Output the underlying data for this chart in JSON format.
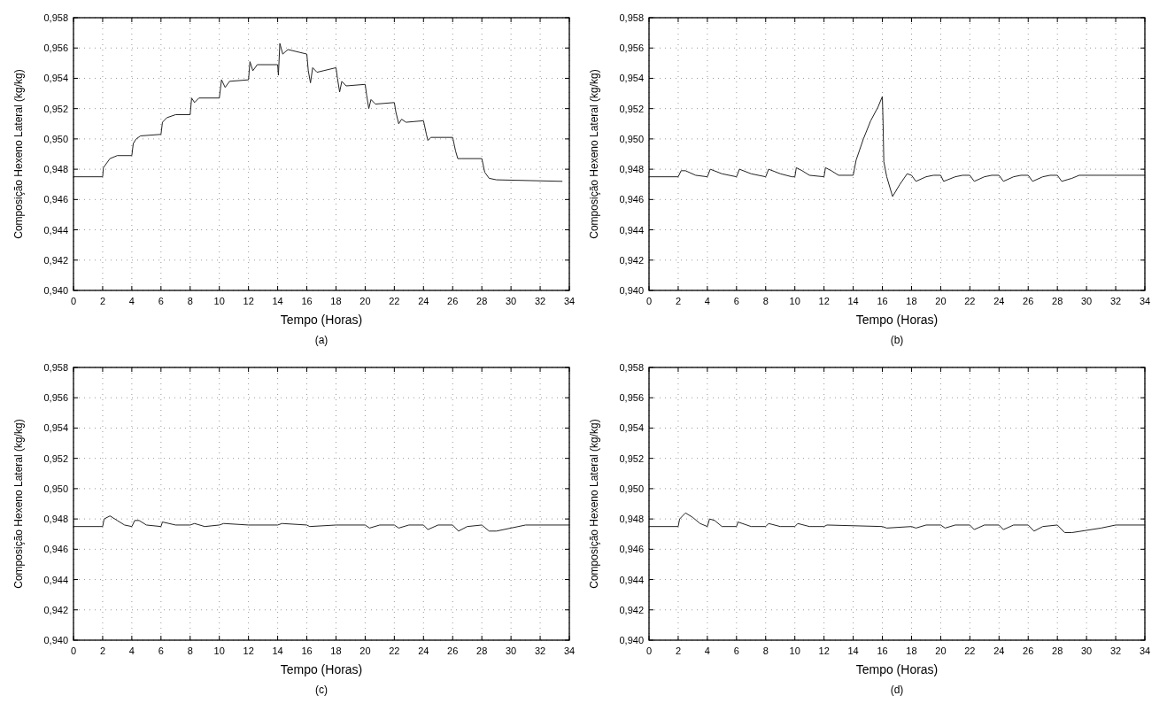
{
  "chart_data": [
    {
      "type": "line",
      "xlabel": "Tempo (Horas)",
      "ylabel": "Composição Hexeno Lateral (kg/kg)",
      "annotations": [
        "(a)"
      ],
      "grid": true,
      "xlim": [
        0,
        34
      ],
      "xticks": [
        0,
        2,
        4,
        6,
        8,
        10,
        12,
        14,
        16,
        18,
        20,
        22,
        24,
        26,
        28,
        30,
        32,
        34
      ],
      "ylim": [
        0.94,
        0.958
      ],
      "yticks": [
        {
          "value": 0.94,
          "label": "0,940"
        },
        {
          "value": 0.942,
          "label": "0,942"
        },
        {
          "value": 0.944,
          "label": "0,944"
        },
        {
          "value": 0.946,
          "label": "0,946"
        },
        {
          "value": 0.948,
          "label": "0,948"
        },
        {
          "value": 0.95,
          "label": "0,950"
        },
        {
          "value": 0.952,
          "label": "0,952"
        },
        {
          "value": 0.954,
          "label": "0,954"
        },
        {
          "value": 0.956,
          "label": "0,956"
        },
        {
          "value": 0.958,
          "label": "0,958"
        }
      ],
      "series": [
        {
          "color": "#222222",
          "x": [
            0,
            2,
            2.05,
            2.5,
            3,
            4,
            4.1,
            4.3,
            4.6,
            6,
            6.1,
            6.4,
            7,
            8,
            8.1,
            8.3,
            8.6,
            10,
            10.15,
            10.4,
            10.7,
            12,
            12.1,
            12.3,
            12.6,
            14,
            14.05,
            14.15,
            14.35,
            14.7,
            16,
            16.1,
            16.25,
            16.4,
            16.7,
            18,
            18.1,
            18.25,
            18.4,
            18.7,
            20,
            20.1,
            20.25,
            20.4,
            20.7,
            22,
            22.1,
            22.3,
            22.5,
            22.8,
            24,
            24.2,
            24.3,
            24.5,
            26,
            26.2,
            26.35,
            26.6,
            28,
            28.2,
            28.5,
            29,
            33.5
          ],
          "values": [
            0.9475,
            0.9475,
            0.9481,
            0.9487,
            0.9489,
            0.9489,
            0.9497,
            0.95,
            0.9502,
            0.9503,
            0.9511,
            0.9514,
            0.9516,
            0.9516,
            0.9527,
            0.9524,
            0.9527,
            0.9527,
            0.9539,
            0.9534,
            0.9538,
            0.9539,
            0.9551,
            0.9545,
            0.9549,
            0.9549,
            0.9542,
            0.9563,
            0.9556,
            0.9559,
            0.9556,
            0.9545,
            0.9537,
            0.9547,
            0.9544,
            0.9547,
            0.954,
            0.9531,
            0.9538,
            0.9535,
            0.9536,
            0.9529,
            0.952,
            0.9526,
            0.9523,
            0.9524,
            0.9518,
            0.951,
            0.9513,
            0.9511,
            0.9512,
            0.9503,
            0.9499,
            0.9501,
            0.9501,
            0.9492,
            0.9487,
            0.9487,
            0.9487,
            0.9478,
            0.9474,
            0.9473,
            0.9472
          ]
        }
      ]
    },
    {
      "type": "line",
      "xlabel": "Tempo (Horas)",
      "ylabel": "Composição Hexeno Lateral (kg/kg)",
      "annotations": [
        "(b)"
      ],
      "grid": true,
      "xlim": [
        0,
        34
      ],
      "xticks": [
        0,
        2,
        4,
        6,
        8,
        10,
        12,
        14,
        16,
        18,
        20,
        22,
        24,
        26,
        28,
        30,
        32,
        34
      ],
      "ylim": [
        0.94,
        0.958
      ],
      "yticks": [
        {
          "value": 0.94,
          "label": "0,940"
        },
        {
          "value": 0.942,
          "label": "0,942"
        },
        {
          "value": 0.944,
          "label": "0,944"
        },
        {
          "value": 0.946,
          "label": "0,946"
        },
        {
          "value": 0.948,
          "label": "0,948"
        },
        {
          "value": 0.95,
          "label": "0,950"
        },
        {
          "value": 0.952,
          "label": "0,952"
        },
        {
          "value": 0.954,
          "label": "0,954"
        },
        {
          "value": 0.956,
          "label": "0,956"
        },
        {
          "value": 0.958,
          "label": "0,958"
        }
      ],
      "series": [
        {
          "color": "#222222",
          "x": [
            0,
            2,
            2.2,
            2.5,
            3.2,
            4,
            4.2,
            5,
            6,
            6.2,
            7,
            8,
            8.2,
            9,
            9.8,
            10,
            10.1,
            10.5,
            11,
            12,
            12.1,
            12.5,
            13,
            14,
            14.2,
            14.7,
            15.2,
            15.7,
            16,
            16.05,
            16.1,
            16.3,
            16.7,
            17.2,
            17.7,
            18,
            18.3,
            19,
            19.5,
            20,
            20.2,
            21,
            21.5,
            22,
            22.3,
            23,
            23.5,
            24,
            24.3,
            25,
            25.5,
            26,
            26.3,
            27,
            27.5,
            28,
            28.3,
            29,
            29.5,
            34
          ],
          "values": [
            0.9475,
            0.9475,
            0.9479,
            0.9479,
            0.9476,
            0.9475,
            0.948,
            0.9477,
            0.9475,
            0.948,
            0.9477,
            0.9475,
            0.948,
            0.9477,
            0.9475,
            0.9475,
            0.9481,
            0.9479,
            0.9476,
            0.9475,
            0.9481,
            0.9479,
            0.9476,
            0.9476,
            0.9486,
            0.95,
            0.9512,
            0.9521,
            0.9528,
            0.951,
            0.9485,
            0.9475,
            0.9462,
            0.947,
            0.9477,
            0.9476,
            0.9472,
            0.9475,
            0.9476,
            0.9476,
            0.9472,
            0.9475,
            0.9476,
            0.9476,
            0.9472,
            0.9475,
            0.9476,
            0.9476,
            0.9472,
            0.9475,
            0.9476,
            0.9476,
            0.9472,
            0.9475,
            0.9476,
            0.9476,
            0.9472,
            0.9474,
            0.9476,
            0.9476
          ]
        }
      ]
    },
    {
      "type": "line",
      "xlabel": "Tempo (Horas)",
      "ylabel": "Composição Hexeno Lateral (kg/kg)",
      "annotations": [
        "(c)"
      ],
      "grid": true,
      "xlim": [
        0,
        34
      ],
      "xticks": [
        0,
        2,
        4,
        6,
        8,
        10,
        12,
        14,
        16,
        18,
        20,
        22,
        24,
        26,
        28,
        30,
        32,
        34
      ],
      "ylim": [
        0.94,
        0.958
      ],
      "yticks": [
        {
          "value": 0.94,
          "label": "0,940"
        },
        {
          "value": 0.942,
          "label": "0,942"
        },
        {
          "value": 0.944,
          "label": "0,944"
        },
        {
          "value": 0.946,
          "label": "0,946"
        },
        {
          "value": 0.948,
          "label": "0,948"
        },
        {
          "value": 0.95,
          "label": "0,950"
        },
        {
          "value": 0.952,
          "label": "0,952"
        },
        {
          "value": 0.954,
          "label": "0,954"
        },
        {
          "value": 0.956,
          "label": "0,956"
        },
        {
          "value": 0.958,
          "label": "0,958"
        }
      ],
      "series": [
        {
          "color": "#222222",
          "x": [
            0,
            2,
            2.1,
            2.5,
            3,
            3.5,
            4,
            4.2,
            4.5,
            5,
            6,
            6.1,
            7,
            8,
            8.3,
            9,
            10,
            10.3,
            12,
            14,
            14.3,
            16,
            16.2,
            18,
            20,
            20.3,
            21,
            22,
            22.3,
            23,
            24,
            24.3,
            25,
            26,
            26.4,
            27,
            28,
            28.5,
            29,
            30,
            31,
            34
          ],
          "values": [
            0.9475,
            0.9475,
            0.948,
            0.9482,
            0.9479,
            0.9476,
            0.9475,
            0.9479,
            0.9479,
            0.9476,
            0.9475,
            0.9478,
            0.9476,
            0.9476,
            0.9477,
            0.9475,
            0.9476,
            0.9477,
            0.9476,
            0.9476,
            0.9477,
            0.9476,
            0.9475,
            0.9476,
            0.9476,
            0.9474,
            0.9476,
            0.9476,
            0.9474,
            0.9476,
            0.9476,
            0.9473,
            0.9476,
            0.9476,
            0.9472,
            0.9475,
            0.9476,
            0.9472,
            0.9472,
            0.9474,
            0.9476,
            0.9476
          ]
        }
      ]
    },
    {
      "type": "line",
      "xlabel": "Tempo (Horas)",
      "ylabel": "Composição Hexeno Lateral (kg/kg)",
      "annotations": [
        "(d)"
      ],
      "grid": true,
      "xlim": [
        0,
        34
      ],
      "xticks": [
        0,
        2,
        4,
        6,
        8,
        10,
        12,
        14,
        16,
        18,
        20,
        22,
        24,
        26,
        28,
        30,
        32,
        34
      ],
      "ylim": [
        0.94,
        0.958
      ],
      "yticks": [
        {
          "value": 0.94,
          "label": "0,940"
        },
        {
          "value": 0.942,
          "label": "0,942"
        },
        {
          "value": 0.944,
          "label": "0,944"
        },
        {
          "value": 0.946,
          "label": "0,946"
        },
        {
          "value": 0.948,
          "label": "0,948"
        },
        {
          "value": 0.95,
          "label": "0,950"
        },
        {
          "value": 0.952,
          "label": "0,952"
        },
        {
          "value": 0.954,
          "label": "0,954"
        },
        {
          "value": 0.956,
          "label": "0,956"
        },
        {
          "value": 0.958,
          "label": "0,958"
        }
      ],
      "series": [
        {
          "color": "#222222",
          "x": [
            0,
            2,
            2.1,
            2.5,
            3,
            3.5,
            4,
            4.15,
            4.5,
            5,
            6,
            6.1,
            7,
            8,
            8.2,
            9,
            10,
            10.2,
            11,
            12,
            12.2,
            16,
            16.3,
            18,
            18.3,
            19,
            20,
            20.3,
            21,
            22,
            22.3,
            23,
            24,
            24.3,
            25,
            26,
            26.4,
            27,
            28,
            28.5,
            29,
            31,
            32,
            34
          ],
          "values": [
            0.9475,
            0.9475,
            0.948,
            0.9484,
            0.9481,
            0.9477,
            0.9475,
            0.948,
            0.9479,
            0.9475,
            0.9475,
            0.9478,
            0.9475,
            0.9475,
            0.9477,
            0.9475,
            0.9475,
            0.9477,
            0.9475,
            0.9475,
            0.9476,
            0.9475,
            0.9474,
            0.9475,
            0.9474,
            0.9476,
            0.9476,
            0.9474,
            0.9476,
            0.9476,
            0.9473,
            0.9476,
            0.9476,
            0.9473,
            0.9476,
            0.9476,
            0.9472,
            0.9475,
            0.9476,
            0.9471,
            0.9471,
            0.9474,
            0.9476,
            0.9476
          ]
        }
      ]
    }
  ]
}
